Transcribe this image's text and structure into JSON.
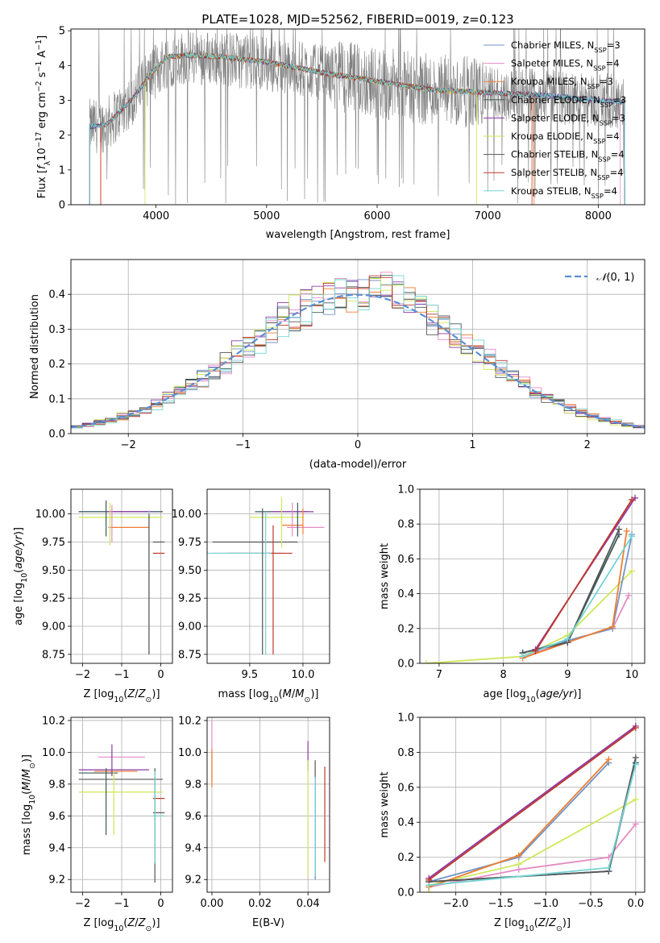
{
  "figure": {
    "title": "PLATE=1028, MJD=52562, FIBERID=0019, z=0.123"
  },
  "models": [
    {
      "name": "Chabrier MILES, N_SSP=3",
      "color": "#7094c8"
    },
    {
      "name": "Salpeter MILES, N_SSP=4",
      "color": "#e58bc4"
    },
    {
      "name": "Kroupa MILES, N_SSP=3",
      "color": "#ee7e31"
    },
    {
      "name": "Chabrier ELODIE, N_SSP=3",
      "color": "#3c5a5a"
    },
    {
      "name": "Salpeter ELODIE, N_SSP=3",
      "color": "#8d3aa6"
    },
    {
      "name": "Kroupa ELODIE, N_SSP=4",
      "color": "#cde85a"
    },
    {
      "name": "Chabrier STELIB, N_SSP=4",
      "color": "#555555"
    },
    {
      "name": "Salpeter STELIB, N_SSP=4",
      "color": "#c0392b"
    },
    {
      "name": "Kroupa STELIB, N_SSP=4",
      "color": "#74d4d4"
    }
  ],
  "legend_parts": [
    {
      "pre": "Chabrier MILES, N",
      "sub": "SSP",
      "post": "=3"
    },
    {
      "pre": "Salpeter MILES, N",
      "sub": "SSP",
      "post": "=4"
    },
    {
      "pre": "Kroupa MILES, N",
      "sub": "SSP",
      "post": "=3"
    },
    {
      "pre": "Chabrier ELODIE, N",
      "sub": "SSP",
      "post": "=3"
    },
    {
      "pre": "Salpeter ELODIE, N",
      "sub": "SSP",
      "post": "=3"
    },
    {
      "pre": "Kroupa ELODIE, N",
      "sub": "SSP",
      "post": "=4"
    },
    {
      "pre": "Chabrier STELIB, N",
      "sub": "SSP",
      "post": "=4"
    },
    {
      "pre": "Salpeter STELIB, N",
      "sub": "SSP",
      "post": "=4"
    },
    {
      "pre": "Kroupa STELIB, N",
      "sub": "SSP",
      "post": "=4"
    }
  ],
  "chart_data": [
    {
      "id": "spectrum",
      "type": "line",
      "xlabel": "wavelength [Angstrom, rest frame]",
      "ylabel": "Flux [f_λ 10^-17 erg cm^-2 s^-1 A^-1]",
      "xlim": [
        3230,
        8420
      ],
      "ylim": [
        0,
        5.05
      ],
      "xticks": [
        4000,
        5000,
        6000,
        7000,
        8000
      ],
      "yticks": [
        0,
        1,
        2,
        3,
        4,
        5
      ],
      "grid": false,
      "legend": "top-right",
      "data_series": {
        "name": "data",
        "color": "#808080",
        "x_range": [
          3400,
          8240
        ],
        "continuum": [
          [
            3400,
            2.25
          ],
          [
            3550,
            2.3
          ],
          [
            3650,
            2.6
          ],
          [
            3800,
            3.1
          ],
          [
            3950,
            3.7
          ],
          [
            4100,
            4.15
          ],
          [
            4300,
            4.25
          ],
          [
            4600,
            4.2
          ],
          [
            5000,
            4.05
          ],
          [
            5500,
            3.8
          ],
          [
            6000,
            3.5
          ],
          [
            6500,
            3.3
          ],
          [
            7000,
            3.2
          ],
          [
            7500,
            3.15
          ],
          [
            8000,
            3.0
          ],
          [
            8240,
            2.95
          ]
        ]
      },
      "model_continuum": [
        [
          3400,
          2.25
        ],
        [
          3550,
          2.3
        ],
        [
          3650,
          2.6
        ],
        [
          3800,
          3.1
        ],
        [
          3950,
          3.75
        ],
        [
          4100,
          4.25
        ],
        [
          4300,
          4.3
        ],
        [
          4600,
          4.25
        ],
        [
          5000,
          4.1
        ],
        [
          5500,
          3.8
        ],
        [
          6000,
          3.55
        ],
        [
          6500,
          3.3
        ],
        [
          7000,
          3.22
        ],
        [
          7500,
          3.15
        ],
        [
          8000,
          3.0
        ],
        [
          8240,
          2.95
        ]
      ],
      "model_ranges": [
        [
          3400,
          8240
        ],
        [
          3500,
          8200
        ],
        [
          3500,
          7420
        ],
        [
          3400,
          8240
        ],
        [
          3400,
          8240
        ],
        [
          3900,
          6900
        ],
        [
          3400,
          8240
        ],
        [
          3500,
          7400
        ],
        [
          3400,
          8240
        ]
      ]
    },
    {
      "id": "residuals",
      "type": "line",
      "xlabel": "(data-model)/error",
      "ylabel": "Normed distribution",
      "xlim": [
        -2.5,
        2.5
      ],
      "ylim": [
        0,
        0.5
      ],
      "xticks": [
        -2,
        -1,
        0,
        1,
        2
      ],
      "yticks": [
        0.0,
        0.1,
        0.2,
        0.3,
        0.4
      ],
      "grid": true,
      "legend": "top-right",
      "reference": {
        "name": "N(0,1)",
        "color": "#5b8ed6"
      },
      "bin_width": 0.1
    },
    {
      "id": "age_vs_Z",
      "type": "scatter",
      "xlabel": "Z [log10(Z/Z⊙)]",
      "ylabel": "age [log10(age/yr)]",
      "xlim": [
        -2.3,
        0.3
      ],
      "ylim": [
        8.67,
        10.22
      ],
      "xticks": [
        -2,
        -1,
        0
      ],
      "yticks": [
        8.75,
        9.0,
        9.25,
        9.5,
        9.75,
        10.0
      ],
      "grid": true
    },
    {
      "id": "age_vs_mass",
      "type": "scatter",
      "xlabel": "mass [log10(M/M⊙)]",
      "ylabel": "",
      "xlim": [
        9.1,
        10.25
      ],
      "ylim": [
        8.67,
        10.22
      ],
      "xticks": [
        9.5,
        10.0
      ],
      "yticks": [
        8.75,
        9.0,
        9.25,
        9.5,
        9.75,
        10.0
      ],
      "grid": true
    },
    {
      "id": "massweight_vs_age",
      "type": "line",
      "xlabel": "age [log10(age/yr)]",
      "ylabel": "mass weight",
      "xlim": [
        6.7,
        10.2
      ],
      "ylim": [
        0,
        1.0
      ],
      "xticks": [
        7,
        8,
        9,
        10
      ],
      "yticks": [
        0.0,
        0.2,
        0.4,
        0.6,
        0.8,
        1.0
      ],
      "grid": true
    },
    {
      "id": "mass_vs_Z",
      "type": "scatter",
      "xlabel": "Z [log10(Z/Z⊙)]",
      "ylabel": "mass [log10(M/M⊙)]",
      "xlim": [
        -2.3,
        0.3
      ],
      "ylim": [
        9.12,
        10.22
      ],
      "xticks": [
        -2,
        -1,
        0
      ],
      "yticks": [
        9.2,
        9.4,
        9.6,
        9.8,
        10.0,
        10.2
      ],
      "grid": true
    },
    {
      "id": "mass_vs_EBV",
      "type": "scatter",
      "xlabel": "E(B-V)",
      "ylabel": "",
      "xlim": [
        -0.002,
        0.049
      ],
      "ylim": [
        9.12,
        10.22
      ],
      "xticks": [
        0.0,
        0.02,
        0.04
      ],
      "yticks": [
        9.2,
        9.4,
        9.6,
        9.8,
        10.0,
        10.2
      ],
      "grid": true
    },
    {
      "id": "massweight_vs_Z",
      "type": "line",
      "xlabel": "Z [log10(Z/Z⊙)]",
      "ylabel": "mass weight",
      "xlim": [
        -2.4,
        0.1
      ],
      "ylim": [
        0,
        1.0
      ],
      "xticks": [
        -2.0,
        -1.5,
        -1.0,
        -0.5,
        0.0
      ],
      "yticks": [
        0.0,
        0.2,
        0.4,
        0.6,
        0.8,
        1.0
      ],
      "grid": true
    }
  ],
  "fit_results": [
    {
      "Z": -0.3,
      "Z_err": [
        -0.3,
        0.0
      ],
      "age": 9.75,
      "age_lo": 9.62,
      "age_hi": 10.02,
      "mass": 9.62,
      "mass_lo": 9.25,
      "mass_hi": 9.9,
      "ebv": 0.043,
      "ebv_lo": 9.2,
      "ebv_hi": 9.95,
      "sfh": {
        "age": [
          8.3,
          9.7,
          10.0
        ],
        "w": [
          0.06,
          0.2,
          0.74
        ],
        "Z": [
          -2.3,
          -1.3,
          -0.3
        ]
      }
    },
    {
      "Z": -1.3,
      "age": 9.88,
      "mass": 9.95,
      "ebv": 0.0,
      "sfh": {
        "age": [
          8.3,
          9.0,
          9.7,
          9.95
        ],
        "w": [
          0.03,
          0.13,
          0.2,
          0.39
        ],
        "Z": [
          -2.3,
          -1.3,
          -0.3,
          0.0
        ]
      }
    },
    {
      "Z": -1.3,
      "age": 9.88,
      "mass": 9.8,
      "ebv": 0.0,
      "sfh": {
        "age": [
          8.3,
          9.7,
          9.92
        ],
        "w": [
          0.03,
          0.21,
          0.76
        ],
        "Z": [
          -2.3,
          -1.3,
          -0.3
        ]
      }
    },
    {
      "Z": -1.4,
      "age": 10.02,
      "mass": 9.83,
      "ebv": 0.043,
      "sfh": {
        "age": [
          8.3,
          9.0,
          9.8
        ],
        "w": [
          0.06,
          0.12,
          0.74
        ],
        "Z": [
          -2.3,
          -0.3,
          0.0
        ]
      }
    },
    {
      "Z": -1.2,
      "age": 10.02,
      "mass": 9.88,
      "ebv": 0.04,
      "sfh": {
        "age": [
          8.5,
          10.05
        ],
        "w": [
          0.08,
          0.95
        ],
        "Z": [
          -2.3,
          0.0
        ]
      }
    },
    {
      "Z": -1.3,
      "age": 9.97,
      "mass": 9.75,
      "ebv": 0.04,
      "sfh": {
        "age": [
          6.8,
          8.3,
          9.0,
          10.0
        ],
        "w": [
          0.0,
          0.04,
          0.16,
          0.53
        ],
        "Z": [
          -2.3,
          -2.3,
          -1.3,
          0.0
        ]
      }
    },
    {
      "Z": -0.2,
      "age": 9.65,
      "mass": 9.62,
      "ebv": 0.043,
      "sfh": {
        "age": [
          8.3,
          9.0,
          9.8
        ],
        "w": [
          0.06,
          0.12,
          0.77
        ],
        "Z": [
          -2.3,
          -0.3,
          0.0
        ]
      }
    },
    {
      "Z": -0.1,
      "age": 9.65,
      "mass": 9.7,
      "ebv": 0.047,
      "sfh": {
        "age": [
          8.5,
          10.0
        ],
        "w": [
          0.07,
          0.94
        ],
        "Z": [
          -2.3,
          0.0
        ]
      }
    },
    {
      "Z": -0.3,
      "age": 9.97,
      "mass": 9.62,
      "ebv": 0.043,
      "sfh": {
        "age": [
          8.3,
          9.0,
          10.0
        ],
        "w": [
          0.04,
          0.14,
          0.73
        ],
        "Z": [
          -2.3,
          -0.3,
          0.0
        ]
      }
    }
  ]
}
